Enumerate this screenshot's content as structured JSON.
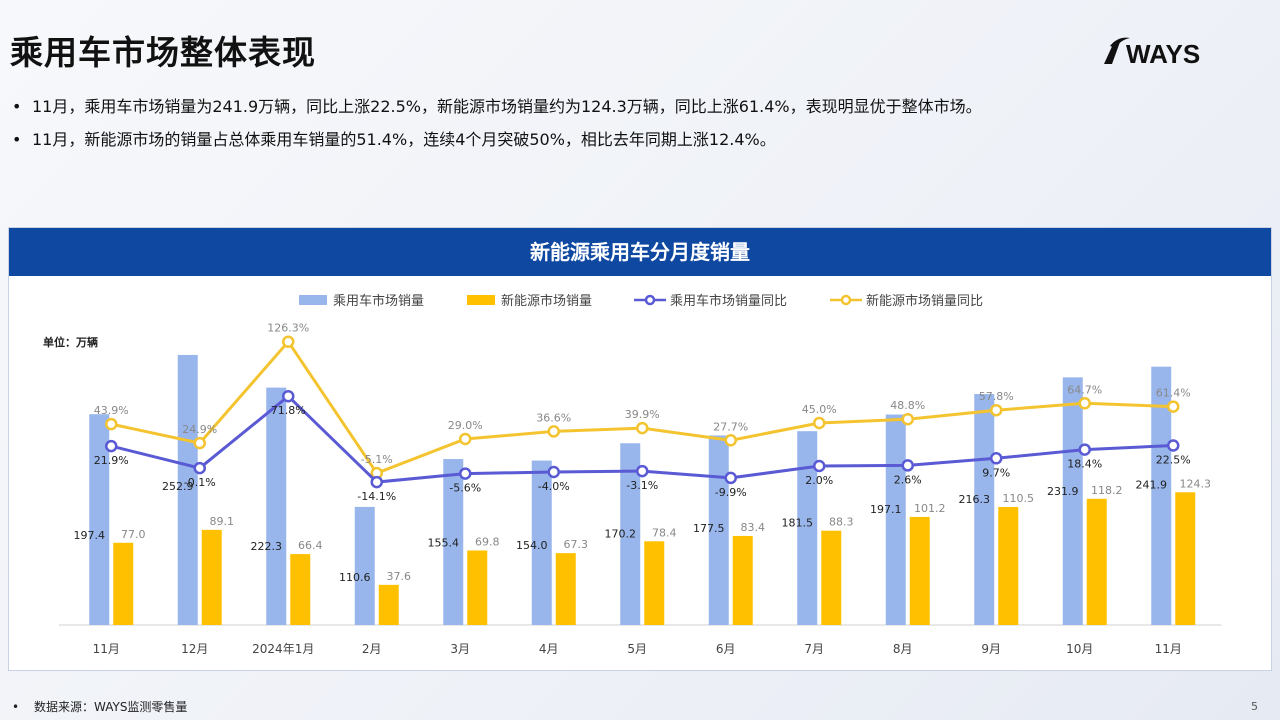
{
  "page": {
    "title": "乘用车市场整体表现",
    "bullets": [
      "11月，乘用车市场销量为241.9万辆，同比上涨22.5%，新能源市场销量约为124.3万辆，同比上涨61.4%，表现明显优于整体市场。",
      "11月，新能源市场的销量占总体乘用车销量的51.4%，连续4个月突破50%，相比去年同期上涨12.4%。"
    ],
    "footer": "数据来源：WAYS监测零售量",
    "page_number": "5",
    "logo_text": "WAYS"
  },
  "colors": {
    "header_bg": "#0f48a1",
    "bar_total": "#98b6ec",
    "bar_nev": "#ffc000",
    "line_total": "#5a5ad4",
    "line_nev": "#f4c430"
  },
  "chart_data": {
    "type": "bar",
    "title": "新能源乘用车分月度销量",
    "unit_label": "单位：万辆",
    "legend_position": "top",
    "grid": false,
    "categories": [
      "11月",
      "12月",
      "2024年1月",
      "2月",
      "3月",
      "4月",
      "5月",
      "6月",
      "7月",
      "8月",
      "9月",
      "10月",
      "11月"
    ],
    "series": [
      {
        "name": "乘用车市场销量",
        "kind": "bar",
        "values": [
          197.4,
          252.9,
          222.3,
          110.6,
          155.4,
          154.0,
          170.2,
          177.5,
          181.5,
          197.1,
          216.3,
          231.9,
          241.9
        ],
        "labels": [
          "197.4",
          "252.9",
          "222.3",
          "110.6",
          "155.4",
          "154.0",
          "170.2",
          "177.5",
          "181.5",
          "197.1",
          "216.3",
          "231.9",
          "241.9"
        ]
      },
      {
        "name": "新能源市场销量",
        "kind": "bar",
        "values": [
          77.0,
          89.1,
          66.4,
          37.6,
          69.8,
          67.3,
          78.4,
          83.4,
          88.3,
          101.2,
          110.5,
          118.2,
          124.3
        ],
        "labels": [
          "77.0",
          "89.1",
          "66.4",
          "37.6",
          "69.8",
          "67.3",
          "78.4",
          "83.4",
          "88.3",
          "101.2",
          "110.5",
          "118.2",
          "124.3"
        ]
      },
      {
        "name": "乘用车市场销量同比",
        "kind": "line",
        "values": [
          21.9,
          -0.1,
          71.8,
          -14.1,
          -5.6,
          -4.0,
          -3.1,
          -9.9,
          2.0,
          2.6,
          9.7,
          18.4,
          22.5
        ],
        "labels": [
          "21.9%",
          "-0.1%",
          "71.8%",
          "-14.1%",
          "-5.6%",
          "-4.0%",
          "-3.1%",
          "-9.9%",
          "2.0%",
          "2.6%",
          "9.7%",
          "18.4%",
          "22.5%"
        ]
      },
      {
        "name": "新能源市场销量同比",
        "kind": "line",
        "values": [
          43.9,
          24.9,
          126.3,
          -5.1,
          29.0,
          36.6,
          39.9,
          27.7,
          45.0,
          48.8,
          57.8,
          64.7,
          61.4
        ],
        "labels": [
          "43.9%",
          "24.9%",
          "126.3%",
          "-5.1%",
          "29.0%",
          "36.6%",
          "39.9%",
          "27.7%",
          "45.0%",
          "48.8%",
          "57.8%",
          "64.7%",
          "61.4%"
        ]
      }
    ],
    "ylim_bars": [
      0,
      280
    ],
    "ylim_lines": [
      -170,
      180
    ]
  }
}
